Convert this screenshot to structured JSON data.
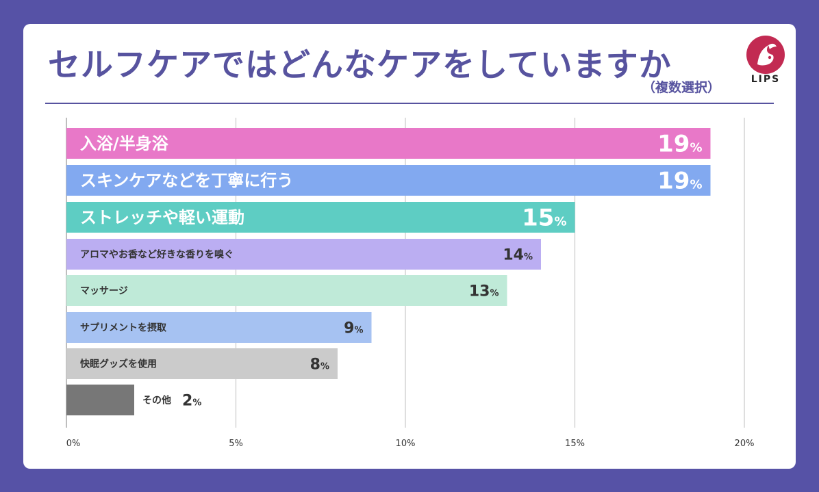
{
  "title": "セルフケアではどんなケアをしていますか",
  "subtitle": "（複数選択）",
  "logo_text": "LIPS",
  "chart_data": {
    "type": "bar",
    "orientation": "horizontal",
    "categories": [
      "入浴/半身浴",
      "スキンケアなどを丁寧に行う",
      "ストレッチや軽い運動",
      "アロマやお香など好きな香りを嗅ぐ",
      "マッサージ",
      "サプリメントを摂取",
      "快眠グッズを使用",
      "その他"
    ],
    "values": [
      19,
      19,
      15,
      14,
      13,
      9,
      8,
      2
    ],
    "value_suffix": "%",
    "bar_colors": [
      "#e878c8",
      "#82a9f0",
      "#5ecdc3",
      "#bbaef2",
      "#bfead8",
      "#a6c2f2",
      "#cbcbcb",
      "#777777"
    ],
    "xlim": [
      0,
      20
    ],
    "xticks": [
      "0%",
      "5%",
      "10%",
      "15%",
      "20%"
    ],
    "grid": true
  }
}
